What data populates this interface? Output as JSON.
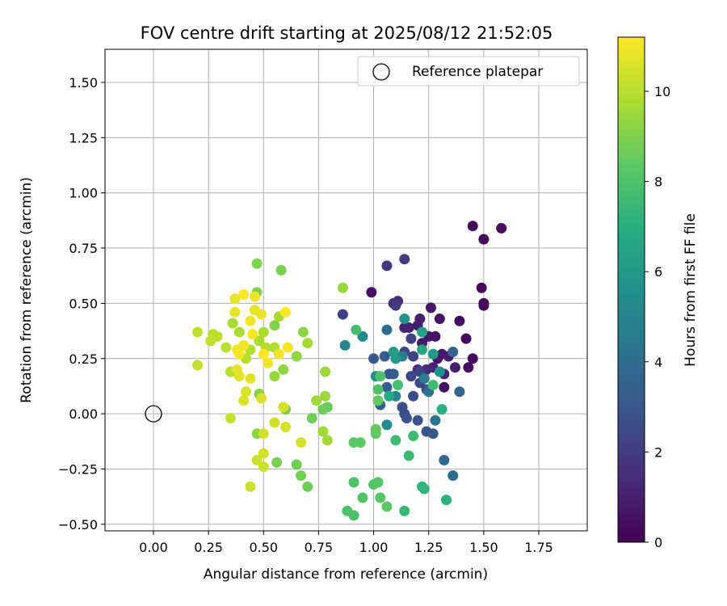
{
  "chart_data": {
    "type": "scatter",
    "title": "FOV centre drift starting at 2025/08/12 21:52:05",
    "xlabel": "Angular distance from reference (arcmin)",
    "ylabel": "Rotation from reference (arcmin)",
    "xlim": [
      -0.22,
      1.97
    ],
    "ylim": [
      -0.53,
      1.65
    ],
    "xticks": [
      "0.00",
      "0.25",
      "0.50",
      "0.75",
      "1.00",
      "1.25",
      "1.50",
      "1.75"
    ],
    "yticks": [
      "−0.50",
      "−0.25",
      "0.00",
      "0.25",
      "0.50",
      "0.75",
      "1.00",
      "1.25",
      "1.50"
    ],
    "grid": true,
    "legend": {
      "placement": "top-right",
      "entries": [
        {
          "label": "Reference platepar",
          "marker": "open-circle"
        }
      ]
    },
    "reference": {
      "x": 0.0,
      "y": 0.0
    },
    "colorbar": {
      "label": "Hours from first FF file",
      "colormap": "viridis",
      "range": [
        0,
        11.2
      ],
      "ticks": [
        "0",
        "2",
        "4",
        "6",
        "8",
        "10"
      ]
    },
    "points": [
      {
        "x": 1.45,
        "y": 0.85,
        "c": 0.2
      },
      {
        "x": 1.5,
        "y": 0.79,
        "c": 0.2
      },
      {
        "x": 1.58,
        "y": 0.84,
        "c": 0.3
      },
      {
        "x": 1.49,
        "y": 0.57,
        "c": 0.3
      },
      {
        "x": 1.5,
        "y": 0.5,
        "c": 0.2
      },
      {
        "x": 1.5,
        "y": 0.49,
        "c": 0.2
      },
      {
        "x": 1.39,
        "y": 0.42,
        "c": 0.3
      },
      {
        "x": 1.42,
        "y": 0.34,
        "c": 0.3
      },
      {
        "x": 1.45,
        "y": 0.25,
        "c": 0.3
      },
      {
        "x": 1.43,
        "y": 0.21,
        "c": 0.4
      },
      {
        "x": 1.32,
        "y": 0.12,
        "c": 0.5
      },
      {
        "x": 0.99,
        "y": 0.55,
        "c": 0.5
      },
      {
        "x": 1.3,
        "y": 0.43,
        "c": 0.6
      },
      {
        "x": 1.26,
        "y": 0.48,
        "c": 0.7
      },
      {
        "x": 1.25,
        "y": 0.35,
        "c": 0.8
      },
      {
        "x": 1.28,
        "y": 0.35,
        "c": 0.6
      },
      {
        "x": 1.31,
        "y": 0.27,
        "c": 0.8
      },
      {
        "x": 1.34,
        "y": 0.26,
        "c": 0.9
      },
      {
        "x": 1.29,
        "y": 0.25,
        "c": 0.7
      },
      {
        "x": 1.22,
        "y": 0.32,
        "c": 0.9
      },
      {
        "x": 1.2,
        "y": 0.4,
        "c": 1.0
      },
      {
        "x": 1.16,
        "y": 0.39,
        "c": 1.0
      },
      {
        "x": 1.14,
        "y": 0.39,
        "c": 1.1
      },
      {
        "x": 1.21,
        "y": 0.43,
        "c": 1.0
      },
      {
        "x": 1.37,
        "y": 0.21,
        "c": 0.9
      },
      {
        "x": 1.32,
        "y": 0.18,
        "c": 1.2
      },
      {
        "x": 1.27,
        "y": 0.21,
        "c": 1.1
      },
      {
        "x": 1.24,
        "y": 0.2,
        "c": 1.3
      },
      {
        "x": 1.2,
        "y": 0.2,
        "c": 1.4
      },
      {
        "x": 1.11,
        "y": 0.51,
        "c": 1.5
      },
      {
        "x": 1.09,
        "y": 0.5,
        "c": 1.6
      },
      {
        "x": 1.06,
        "y": 0.67,
        "c": 1.8
      },
      {
        "x": 1.14,
        "y": 0.7,
        "c": 1.9
      },
      {
        "x": 1.1,
        "y": 0.49,
        "c": 2.0
      },
      {
        "x": 0.86,
        "y": 0.45,
        "c": 2.1
      },
      {
        "x": 1.17,
        "y": 0.34,
        "c": 2.2
      },
      {
        "x": 1.14,
        "y": 0.28,
        "c": 2.3
      },
      {
        "x": 1.18,
        "y": 0.26,
        "c": 2.2
      },
      {
        "x": 1.21,
        "y": 0.19,
        "c": 2.3
      },
      {
        "x": 1.17,
        "y": 0.17,
        "c": 2.4
      },
      {
        "x": 1.24,
        "y": 0.11,
        "c": 2.5
      },
      {
        "x": 1.21,
        "y": 0.14,
        "c": 2.5
      },
      {
        "x": 1.18,
        "y": 0.08,
        "c": 2.6
      },
      {
        "x": 1.13,
        "y": 0.03,
        "c": 2.7
      },
      {
        "x": 1.14,
        "y": 0.0,
        "c": 2.7
      },
      {
        "x": 1.15,
        "y": -0.02,
        "c": 2.8
      },
      {
        "x": 1.2,
        "y": -0.03,
        "c": 2.9
      },
      {
        "x": 1.24,
        "y": -0.08,
        "c": 2.9
      },
      {
        "x": 1.27,
        "y": -0.09,
        "c": 3.0
      },
      {
        "x": 1.07,
        "y": 0.18,
        "c": 3.0
      },
      {
        "x": 1.05,
        "y": 0.26,
        "c": 3.1
      },
      {
        "x": 1.0,
        "y": 0.25,
        "c": 3.2
      },
      {
        "x": 1.09,
        "y": 0.18,
        "c": 3.2
      },
      {
        "x": 1.06,
        "y": 0.12,
        "c": 3.3
      },
      {
        "x": 1.03,
        "y": 0.04,
        "c": 3.4
      },
      {
        "x": 1.36,
        "y": 0.28,
        "c": 3.5
      },
      {
        "x": 1.39,
        "y": 0.1,
        "c": 3.6
      },
      {
        "x": 1.32,
        "y": -0.21,
        "c": 3.8
      },
      {
        "x": 1.36,
        "y": -0.28,
        "c": 3.9
      },
      {
        "x": 1.06,
        "y": 0.38,
        "c": 4.0
      },
      {
        "x": 1.25,
        "y": 0.1,
        "c": 4.2
      },
      {
        "x": 1.28,
        "y": -0.03,
        "c": 4.4
      },
      {
        "x": 1.23,
        "y": 0.16,
        "c": 4.6
      },
      {
        "x": 1.13,
        "y": 0.26,
        "c": 4.8
      },
      {
        "x": 1.1,
        "y": 0.08,
        "c": 5.0
      },
      {
        "x": 0.87,
        "y": 0.31,
        "c": 5.1
      },
      {
        "x": 1.06,
        "y": -0.05,
        "c": 5.2
      },
      {
        "x": 0.95,
        "y": 0.35,
        "c": 5.3
      },
      {
        "x": 1.01,
        "y": 0.17,
        "c": 5.5
      },
      {
        "x": 1.3,
        "y": 0.19,
        "c": 5.6
      },
      {
        "x": 1.14,
        "y": 0.43,
        "c": 5.8
      },
      {
        "x": 1.27,
        "y": 0.27,
        "c": 6.0
      },
      {
        "x": 1.1,
        "y": 0.25,
        "c": 6.0
      },
      {
        "x": 1.09,
        "y": 0.28,
        "c": 6.2
      },
      {
        "x": 1.22,
        "y": 0.37,
        "c": 6.4
      },
      {
        "x": 1.22,
        "y": 0.29,
        "c": 6.6
      },
      {
        "x": 1.07,
        "y": 0.08,
        "c": 6.8
      },
      {
        "x": 1.31,
        "y": 0.02,
        "c": 7.0
      },
      {
        "x": 1.33,
        "y": -0.39,
        "c": 7.1
      },
      {
        "x": 1.23,
        "y": -0.34,
        "c": 7.2
      },
      {
        "x": 1.22,
        "y": -0.33,
        "c": 7.3
      },
      {
        "x": 1.14,
        "y": -0.44,
        "c": 7.4
      },
      {
        "x": 1.16,
        "y": -0.19,
        "c": 7.5
      },
      {
        "x": 1.1,
        "y": -0.12,
        "c": 7.6
      },
      {
        "x": 1.18,
        "y": -0.1,
        "c": 7.6
      },
      {
        "x": 1.27,
        "y": 0.13,
        "c": 7.7
      },
      {
        "x": 1.11,
        "y": 0.13,
        "c": 7.8
      },
      {
        "x": 1.03,
        "y": 0.17,
        "c": 7.9
      },
      {
        "x": 1.02,
        "y": 0.11,
        "c": 8.0
      },
      {
        "x": 0.92,
        "y": 0.38,
        "c": 7.8
      },
      {
        "x": 0.91,
        "y": -0.46,
        "c": 7.9
      },
      {
        "x": 0.88,
        "y": -0.44,
        "c": 8.0
      },
      {
        "x": 0.91,
        "y": -0.31,
        "c": 8.0
      },
      {
        "x": 0.95,
        "y": -0.38,
        "c": 8.1
      },
      {
        "x": 1.0,
        "y": -0.32,
        "c": 8.1
      },
      {
        "x": 1.02,
        "y": -0.31,
        "c": 8.2
      },
      {
        "x": 1.03,
        "y": -0.38,
        "c": 8.2
      },
      {
        "x": 1.06,
        "y": -0.42,
        "c": 8.3
      },
      {
        "x": 0.91,
        "y": -0.13,
        "c": 8.3
      },
      {
        "x": 0.94,
        "y": -0.13,
        "c": 8.4
      },
      {
        "x": 1.01,
        "y": -0.09,
        "c": 8.4
      },
      {
        "x": 1.01,
        "y": -0.07,
        "c": 8.5
      },
      {
        "x": 1.02,
        "y": 0.06,
        "c": 8.5
      },
      {
        "x": 0.79,
        "y": 0.03,
        "c": 8.6
      },
      {
        "x": 0.77,
        "y": 0.02,
        "c": 8.6
      },
      {
        "x": 0.72,
        "y": -0.02,
        "c": 8.7
      },
      {
        "x": 0.7,
        "y": -0.33,
        "c": 8.7
      },
      {
        "x": 0.67,
        "y": -0.28,
        "c": 8.8
      },
      {
        "x": 0.65,
        "y": -0.23,
        "c": 8.8
      },
      {
        "x": 0.56,
        "y": -0.22,
        "c": 8.9
      },
      {
        "x": 0.6,
        "y": 0.02,
        "c": 8.9
      },
      {
        "x": 0.58,
        "y": 0.65,
        "c": 8.9
      },
      {
        "x": 0.47,
        "y": 0.68,
        "c": 9.0
      },
      {
        "x": 0.47,
        "y": 0.55,
        "c": 9.0
      },
      {
        "x": 0.55,
        "y": 0.4,
        "c": 9.1
      },
      {
        "x": 0.48,
        "y": 0.09,
        "c": 9.1
      },
      {
        "x": 0.47,
        "y": -0.09,
        "c": 9.2
      },
      {
        "x": 0.68,
        "y": 0.37,
        "c": 9.2
      },
      {
        "x": 0.65,
        "y": 0.26,
        "c": 9.3
      },
      {
        "x": 0.59,
        "y": 0.2,
        "c": 9.3
      },
      {
        "x": 0.55,
        "y": 0.17,
        "c": 9.4
      },
      {
        "x": 0.86,
        "y": 0.57,
        "c": 9.4
      },
      {
        "x": 0.78,
        "y": 0.19,
        "c": 9.5
      },
      {
        "x": 0.78,
        "y": 0.08,
        "c": 9.5
      },
      {
        "x": 0.74,
        "y": 0.06,
        "c": 9.6
      },
      {
        "x": 0.77,
        "y": -0.08,
        "c": 9.6
      },
      {
        "x": 0.79,
        "y": -0.12,
        "c": 9.6
      },
      {
        "x": 0.7,
        "y": 0.32,
        "c": 9.7
      },
      {
        "x": 0.57,
        "y": 0.44,
        "c": 9.7
      },
      {
        "x": 0.36,
        "y": 0.41,
        "c": 9.7
      },
      {
        "x": 0.39,
        "y": 0.37,
        "c": 9.8
      },
      {
        "x": 0.48,
        "y": 0.33,
        "c": 9.8
      },
      {
        "x": 0.5,
        "y": 0.37,
        "c": 9.8
      },
      {
        "x": 0.51,
        "y": 0.3,
        "c": 9.9
      },
      {
        "x": 0.55,
        "y": 0.3,
        "c": 9.9
      },
      {
        "x": 0.44,
        "y": 0.29,
        "c": 9.9
      },
      {
        "x": 0.42,
        "y": 0.25,
        "c": 10.0
      },
      {
        "x": 0.35,
        "y": 0.19,
        "c": 10.0
      },
      {
        "x": 0.33,
        "y": 0.3,
        "c": 10.0
      },
      {
        "x": 0.29,
        "y": 0.35,
        "c": 10.1
      },
      {
        "x": 0.27,
        "y": 0.36,
        "c": 10.1
      },
      {
        "x": 0.2,
        "y": 0.37,
        "c": 10.1
      },
      {
        "x": 0.2,
        "y": 0.22,
        "c": 10.2
      },
      {
        "x": 0.26,
        "y": 0.33,
        "c": 10.2
      },
      {
        "x": 0.35,
        "y": -0.02,
        "c": 10.2
      },
      {
        "x": 0.44,
        "y": -0.33,
        "c": 10.3
      },
      {
        "x": 0.47,
        "y": -0.21,
        "c": 10.3
      },
      {
        "x": 0.5,
        "y": -0.24,
        "c": 10.3
      },
      {
        "x": 0.5,
        "y": -0.18,
        "c": 10.4
      },
      {
        "x": 0.5,
        "y": -0.09,
        "c": 10.4
      },
      {
        "x": 0.55,
        "y": -0.04,
        "c": 10.4
      },
      {
        "x": 0.6,
        "y": -0.06,
        "c": 10.5
      },
      {
        "x": 0.67,
        "y": -0.13,
        "c": 10.5
      },
      {
        "x": 0.59,
        "y": 0.03,
        "c": 10.5
      },
      {
        "x": 0.49,
        "y": 0.07,
        "c": 10.6
      },
      {
        "x": 0.41,
        "y": 0.06,
        "c": 10.6
      },
      {
        "x": 0.42,
        "y": 0.1,
        "c": 10.6
      },
      {
        "x": 0.44,
        "y": 0.16,
        "c": 10.7
      },
      {
        "x": 0.39,
        "y": 0.17,
        "c": 10.7
      },
      {
        "x": 0.38,
        "y": 0.2,
        "c": 10.7
      },
      {
        "x": 0.37,
        "y": 0.52,
        "c": 10.8
      },
      {
        "x": 0.37,
        "y": 0.46,
        "c": 10.8
      },
      {
        "x": 0.46,
        "y": 0.47,
        "c": 10.8
      },
      {
        "x": 0.46,
        "y": 0.53,
        "c": 10.9
      },
      {
        "x": 0.49,
        "y": 0.45,
        "c": 10.9
      },
      {
        "x": 0.38,
        "y": 0.29,
        "c": 10.9
      },
      {
        "x": 0.41,
        "y": 0.31,
        "c": 11.0
      },
      {
        "x": 0.44,
        "y": 0.42,
        "c": 11.0
      },
      {
        "x": 0.52,
        "y": 0.23,
        "c": 11.0
      },
      {
        "x": 0.57,
        "y": 0.27,
        "c": 11.0
      },
      {
        "x": 0.39,
        "y": 0.27,
        "c": 11.1
      },
      {
        "x": 0.45,
        "y": 0.36,
        "c": 11.1
      },
      {
        "x": 0.61,
        "y": 0.3,
        "c": 11.1
      },
      {
        "x": 0.6,
        "y": 0.46,
        "c": 11.2
      },
      {
        "x": 0.41,
        "y": 0.54,
        "c": 11.2
      },
      {
        "x": 0.5,
        "y": 0.27,
        "c": 11.2
      }
    ]
  }
}
